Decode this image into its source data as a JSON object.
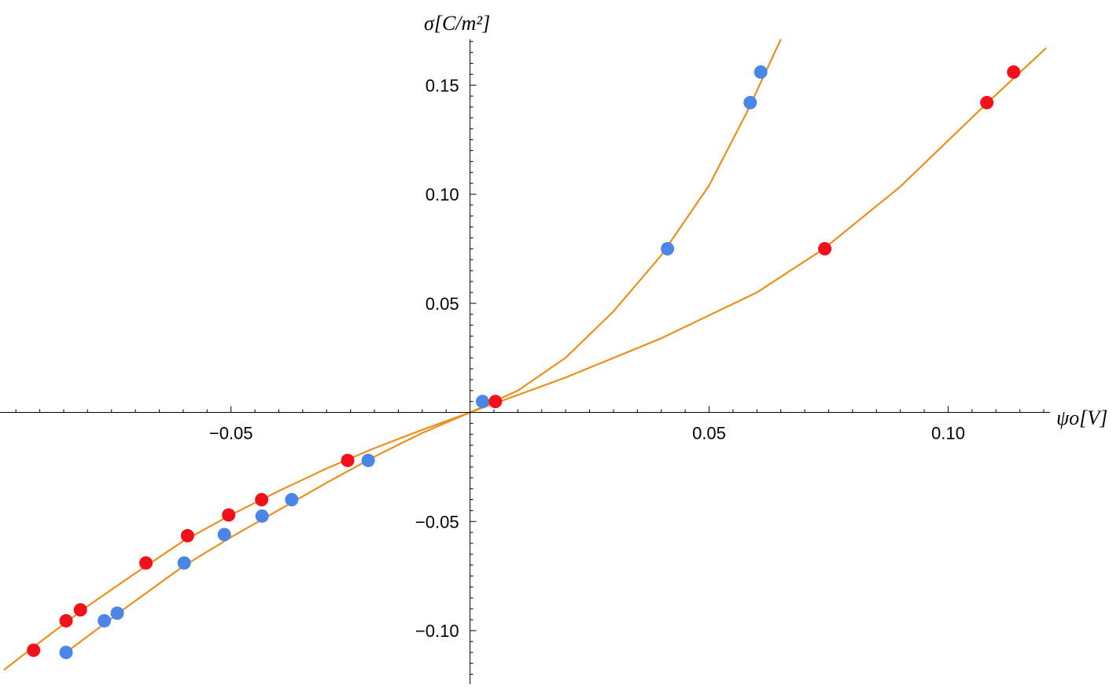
{
  "chart_data": {
    "type": "scatter",
    "title": "",
    "xlabel": "ψo[V]",
    "ylabel": "σ[C/m²]",
    "xlim": [
      -0.0975,
      0.1205
    ],
    "ylim": [
      -0.1245,
      0.171
    ],
    "x_ticks": [
      -0.05,
      0.05,
      0.1
    ],
    "x_tick_labels": [
      "−0.05",
      "0.05",
      "0.10"
    ],
    "y_ticks": [
      -0.1,
      -0.05,
      0.05,
      0.1,
      0.15
    ],
    "y_tick_labels": [
      "−0.10",
      "−0.05",
      "0.05",
      "0.10",
      "0.15"
    ],
    "grid": false,
    "legend": "none",
    "point_colors": {
      "blue": "#4a86e8",
      "red": "#f2101a"
    },
    "fit_color": "#e8901e",
    "series": [
      {
        "color": "blue",
        "x": [
          -0.0845,
          -0.0765,
          -0.0738,
          -0.0598,
          -0.0514,
          -0.0435,
          -0.0373,
          -0.0213,
          0.0026,
          0.0413,
          0.0586,
          0.0608
        ],
        "y": [
          -0.11,
          -0.0955,
          -0.092,
          -0.069,
          -0.056,
          -0.0475,
          -0.04,
          -0.022,
          0.005,
          0.075,
          0.142,
          0.156
        ]
      },
      {
        "color": "red",
        "x": [
          -0.0913,
          -0.0845,
          -0.0815,
          -0.0678,
          -0.0591,
          -0.0505,
          -0.0436,
          -0.0256,
          0.0053,
          0.0742,
          0.1081,
          0.1137
        ],
        "y": [
          -0.109,
          -0.0955,
          -0.0905,
          -0.069,
          -0.0565,
          -0.047,
          -0.04,
          -0.022,
          0.005,
          0.075,
          0.142,
          0.156
        ]
      }
    ],
    "fits": [
      {
        "x": [
          -0.0845,
          -0.072,
          -0.06,
          -0.05,
          -0.04,
          -0.03,
          -0.02,
          -0.01,
          0.0,
          0.01,
          0.02,
          0.03,
          0.04,
          0.05,
          0.058,
          0.065
        ],
        "y": [
          -0.11,
          -0.0895,
          -0.0705,
          -0.0572,
          -0.0447,
          -0.0322,
          -0.0203,
          -0.0094,
          0.0,
          0.01,
          0.0251,
          0.0463,
          0.072,
          0.104,
          0.138,
          0.171
        ]
      },
      {
        "x": [
          -0.0975,
          -0.09,
          -0.08,
          -0.07,
          -0.06,
          -0.05,
          -0.04,
          -0.03,
          -0.02,
          -0.01,
          0.0,
          0.02,
          0.04,
          0.06,
          0.074,
          0.09,
          0.108,
          0.1205
        ],
        "y": [
          -0.118,
          -0.1053,
          -0.0888,
          -0.0737,
          -0.059,
          -0.0469,
          -0.036,
          -0.0257,
          -0.0164,
          -0.008,
          0.0,
          0.016,
          0.034,
          0.055,
          0.075,
          0.1035,
          0.1415,
          0.167
        ]
      }
    ]
  }
}
